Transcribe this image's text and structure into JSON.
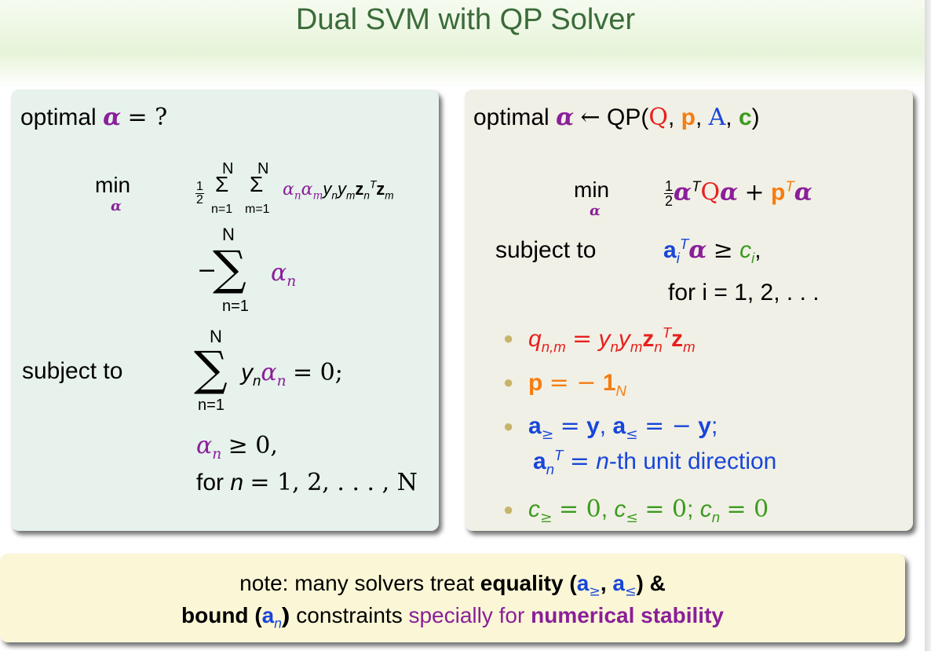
{
  "title": "Dual SVM with QP Solver",
  "left": {
    "heading_text": "optimal",
    "heading_symbol": "α",
    "heading_rest": "= ?",
    "min_label": "min",
    "min_sub": "α",
    "objective_term1": "½ Σ Σ αnαmynymznTzm",
    "objective_term2": "− Σ αn",
    "sum_top": "N",
    "sum_bottom_n": "n=1",
    "sum_bottom_m": "m=1",
    "subject_to": "subject to",
    "constraint1_tail": "= 0;",
    "constraint2_tail": "≥ 0,",
    "constraint3_prefix": "for",
    "constraint3_tail": "= 1, 2, . . . , N"
  },
  "right": {
    "heading_text": "optimal",
    "heading_arrow": "←",
    "heading_fn": "QP(",
    "min_label": "min",
    "subject_to": "subject to",
    "constraint_tail": "for i = 1, 2, . . .",
    "bullets": [
      {
        "text": "qn,m = ynymznTzm",
        "color": "#e8201e"
      },
      {
        "text": "p = − 1N",
        "color": "#f57d10"
      },
      {
        "text": "a≥ = y, a≤ = − y; anT = n-th unit direction",
        "color": "#1846d8"
      },
      {
        "text": "c≥ = 0, c≤ = 0; cn = 0",
        "color": "#3b9b1f"
      }
    ],
    "unit_direction": "-th unit direction"
  },
  "note": {
    "line1_a": "note: many solvers treat",
    "line1_b": "equality (",
    "line1_c": ") &",
    "line2_a": "bound (",
    "line2_b": ") constraints",
    "line2_c": "specially for",
    "line2_d": "numerical stability"
  }
}
